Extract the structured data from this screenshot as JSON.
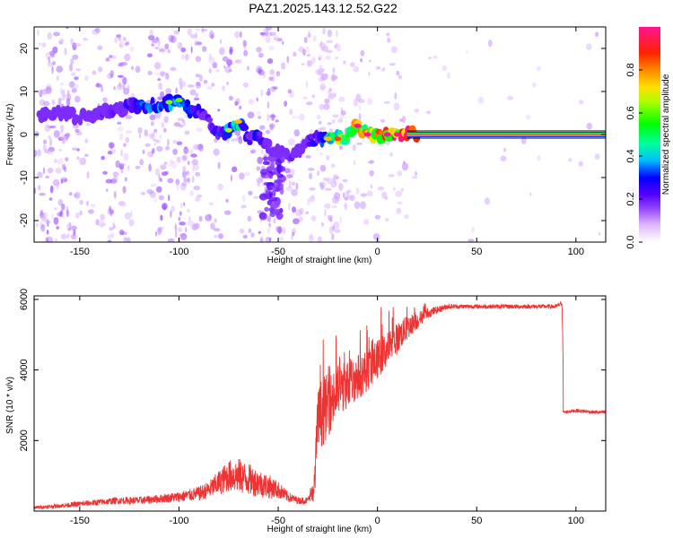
{
  "figure_title": "PAZ1.2025.143.12.52.G22",
  "chart_data": [
    {
      "type": "heatmap",
      "xlabel": "Height of straight line (km)",
      "ylabel": "Frequency (Hz)",
      "xlim": [
        -173,
        115
      ],
      "ylim": [
        -25,
        25
      ],
      "xticks": [
        -150,
        -100,
        -50,
        0,
        50,
        100
      ],
      "yticks": [
        -20,
        -10,
        0,
        10,
        20
      ],
      "colorbar": {
        "label": "Normalized spectral amplitude",
        "range": [
          0,
          1
        ],
        "ticks": [
          0.0,
          0.2,
          0.4,
          0.6,
          0.8
        ],
        "tick_labels": [
          "0.0",
          "0.2",
          "0.4",
          "0.6",
          "0.8"
        ],
        "colormap": [
          "#ffffff",
          "#e6c8ff",
          "#b070ff",
          "#6a00ee",
          "#0000ff",
          "#00ccff",
          "#00ff66",
          "#ccff00",
          "#ffcc00",
          "#ff3300",
          "#ff1493"
        ]
      },
      "ridge": {
        "x": [
          -170,
          -160,
          -150,
          -140,
          -130,
          -120,
          -110,
          -100,
          -95,
          -90,
          -85,
          -80,
          -75,
          -70,
          -65,
          -60,
          -55,
          -50,
          -45,
          -40,
          -35,
          -30,
          -25,
          -20,
          -15,
          -10,
          -5,
          0,
          5,
          10,
          15,
          20,
          40,
          60,
          80,
          100,
          115
        ],
        "y": [
          4,
          5,
          4,
          5,
          6,
          7,
          7,
          8,
          6,
          5,
          3,
          0,
          1,
          3,
          -1,
          0,
          -3,
          -4,
          -5,
          -4,
          -2,
          -1,
          -1,
          -1,
          0,
          2,
          0,
          0,
          0,
          0,
          0,
          0,
          0,
          0,
          0,
          0,
          0
        ],
        "amplitude": [
          0.15,
          0.15,
          0.15,
          0.2,
          0.2,
          0.3,
          0.4,
          0.35,
          0.3,
          0.3,
          0.2,
          0.3,
          0.4,
          0.5,
          0.2,
          0.3,
          0.2,
          0.15,
          0.2,
          0.15,
          0.2,
          0.3,
          0.5,
          0.6,
          0.7,
          0.75,
          0.8,
          0.85,
          0.9,
          0.95,
          1,
          1,
          1,
          1,
          1,
          1,
          1
        ]
      }
    },
    {
      "type": "line",
      "xlabel": "Height of straight line (km)",
      "ylabel": "SNR (10 * v/v)",
      "xlim": [
        -173,
        115
      ],
      "ylim": [
        0,
        6100
      ],
      "xticks": [
        -150,
        -100,
        -50,
        0,
        50,
        100
      ],
      "yticks": [
        2000,
        4000,
        6000
      ],
      "color": "#ee3333",
      "series": [
        {
          "x": [
            -173,
            -160,
            -150,
            -140,
            -130,
            -120,
            -110,
            -100,
            -90,
            -85,
            -80,
            -75,
            -70,
            -65,
            -60,
            -55,
            -50,
            -45,
            -40,
            -35,
            -32,
            -30,
            -28,
            -25,
            -22,
            -20,
            -15,
            -10,
            -5,
            0,
            5,
            10,
            15,
            20,
            25,
            30,
            35,
            40,
            50,
            60,
            70,
            80,
            90,
            93,
            94,
            100,
            110,
            115
          ],
          "y": [
            100,
            150,
            200,
            250,
            300,
            300,
            350,
            400,
            500,
            600,
            800,
            1000,
            1000,
            900,
            800,
            700,
            600,
            400,
            300,
            300,
            600,
            2500,
            2800,
            3000,
            3200,
            3400,
            3600,
            3800,
            4000,
            4300,
            4600,
            4900,
            5200,
            5400,
            5600,
            5700,
            5800,
            5800,
            5800,
            5800,
            5800,
            5800,
            5800,
            5900,
            2800,
            2850,
            2800,
            2800
          ],
          "noise": [
            40,
            60,
            80,
            90,
            100,
            110,
            120,
            150,
            200,
            250,
            350,
            450,
            500,
            450,
            400,
            350,
            250,
            150,
            100,
            100,
            300,
            1000,
            1000,
            900,
            800,
            750,
            700,
            650,
            600,
            550,
            500,
            450,
            350,
            250,
            150,
            100,
            80,
            60,
            60,
            60,
            60,
            60,
            60,
            60,
            50,
            50,
            50,
            50
          ]
        }
      ]
    }
  ]
}
